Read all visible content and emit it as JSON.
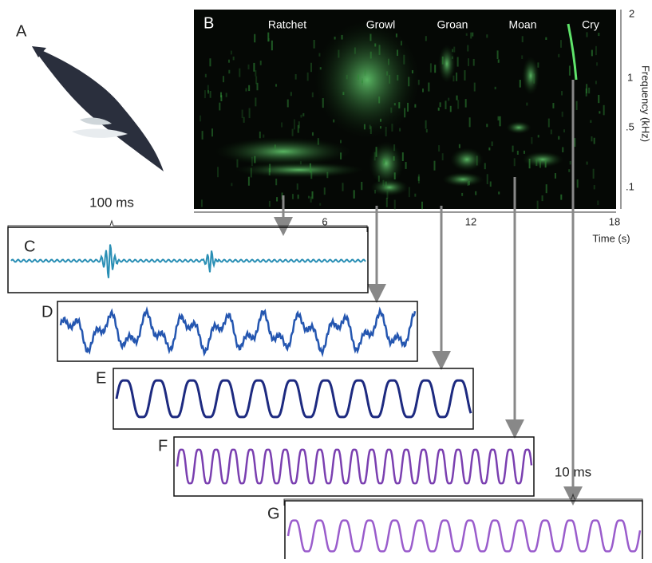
{
  "panels": {
    "a": "A",
    "b": "B",
    "c": "C",
    "d": "D",
    "e": "E",
    "f": "F",
    "g": "G"
  },
  "calls": [
    "Ratchet",
    "Growl",
    "Groan",
    "Moan",
    "Cry"
  ],
  "frequency_axis": {
    "label": "Frequency (kHz)",
    "ticks": [
      "2",
      "1",
      ".5",
      ".1"
    ]
  },
  "time_axis": {
    "label": "Time (s)",
    "ticks": [
      "6",
      "12",
      "18"
    ]
  },
  "scale_bars": {
    "top": "100 ms",
    "bottom": "10 ms"
  }
}
